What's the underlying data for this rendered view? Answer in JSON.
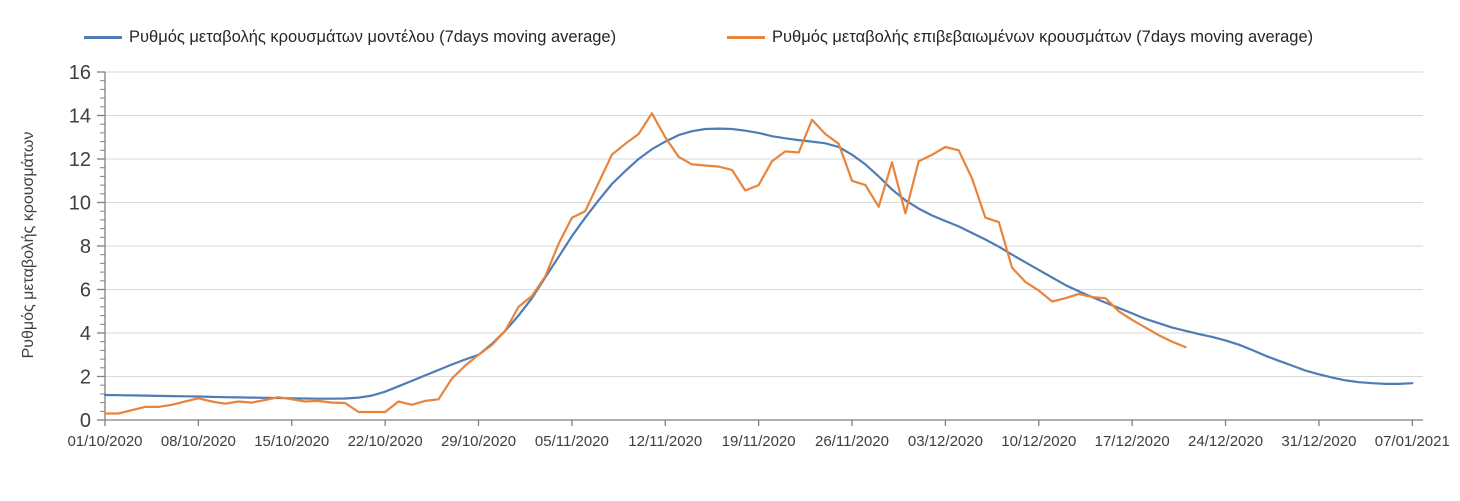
{
  "y_axis_title": "Ρυθμός μεταβολής κρουσμάτων",
  "colors": {
    "model_line": "#4f7cb4",
    "confirmed_line": "#e8843c",
    "gridline": "#d9d9d9",
    "axis": "#808080",
    "tick_label_text": "#404040"
  },
  "chart_data": {
    "type": "line",
    "title": "",
    "xlabel": "",
    "ylabel": "Ρυθμός μεταβολής κρουσμάτων",
    "grid": "horizontal",
    "legend_position": "top",
    "ylim": [
      0,
      16
    ],
    "y_ticks": [
      0,
      2,
      4,
      6,
      8,
      10,
      12,
      14,
      16
    ],
    "y_minor_tick_step": 0.4,
    "x_tick_labels": [
      "01/10/2020",
      "08/10/2020",
      "15/10/2020",
      "22/10/2020",
      "29/10/2020",
      "05/11/2020",
      "12/11/2020",
      "19/11/2020",
      "26/11/2020",
      "03/12/2020",
      "10/12/2020",
      "17/12/2020",
      "24/12/2020",
      "31/12/2020",
      "07/01/2021"
    ],
    "x_unit": "days since 01/10/2020, one point per day",
    "days_per_tick": 7,
    "series": [
      {
        "key": "model",
        "name": "Ρυθμός μεταβολής κρουσμάτων μοντέλου (7days moving average)",
        "color": "#4f7cb4",
        "start_day": 0,
        "values": [
          1.15,
          1.14,
          1.13,
          1.12,
          1.11,
          1.1,
          1.09,
          1.08,
          1.06,
          1.05,
          1.04,
          1.03,
          1.02,
          1.01,
          1.0,
          0.99,
          0.98,
          0.98,
          0.99,
          1.03,
          1.12,
          1.3,
          1.55,
          1.8,
          2.05,
          2.3,
          2.55,
          2.78,
          3.0,
          3.5,
          4.1,
          4.8,
          5.6,
          6.55,
          7.5,
          8.45,
          9.3,
          10.1,
          10.85,
          11.45,
          12.0,
          12.45,
          12.8,
          13.1,
          13.28,
          13.38,
          13.4,
          13.38,
          13.3,
          13.2,
          13.05,
          12.95,
          12.87,
          12.8,
          12.72,
          12.55,
          12.2,
          11.75,
          11.2,
          10.6,
          10.1,
          9.72,
          9.4,
          9.15,
          8.9,
          8.6,
          8.3,
          7.97,
          7.6,
          7.25,
          6.9,
          6.55,
          6.2,
          5.92,
          5.65,
          5.4,
          5.15,
          4.9,
          4.65,
          4.45,
          4.25,
          4.1,
          3.95,
          3.82,
          3.66,
          3.46,
          3.22,
          2.95,
          2.72,
          2.5,
          2.27,
          2.1,
          1.95,
          1.82,
          1.74,
          1.69,
          1.66,
          1.66,
          1.69
        ]
      },
      {
        "key": "confirmed",
        "name": "Ρυθμός μεταβολής επιβεβαιωμένων κρουσμάτων (7days moving average)",
        "color": "#e8843c",
        "start_day": 0,
        "values": [
          0.3,
          0.3,
          0.45,
          0.6,
          0.6,
          0.7,
          0.85,
          1.0,
          0.85,
          0.75,
          0.85,
          0.8,
          0.92,
          1.05,
          0.95,
          0.85,
          0.88,
          0.8,
          0.78,
          0.37,
          0.37,
          0.37,
          0.85,
          0.7,
          0.88,
          0.95,
          1.9,
          2.5,
          3.0,
          3.45,
          4.1,
          5.2,
          5.7,
          6.6,
          8.1,
          9.3,
          9.6,
          10.9,
          12.2,
          12.7,
          13.15,
          14.1,
          13.0,
          12.1,
          11.75,
          11.7,
          11.65,
          11.5,
          10.55,
          10.8,
          11.9,
          12.35,
          12.3,
          13.8,
          13.15,
          12.7,
          11.0,
          10.8,
          9.8,
          11.85,
          9.5,
          11.9,
          12.2,
          12.55,
          12.4,
          11.1,
          9.3,
          9.1,
          7.0,
          6.35,
          5.95,
          5.45,
          5.6,
          5.8,
          5.65,
          5.6,
          5.0,
          4.6,
          4.25,
          3.9,
          3.6,
          3.35
        ]
      }
    ]
  },
  "legend": {
    "items": [
      {
        "series_key": "model"
      },
      {
        "series_key": "confirmed"
      }
    ]
  }
}
